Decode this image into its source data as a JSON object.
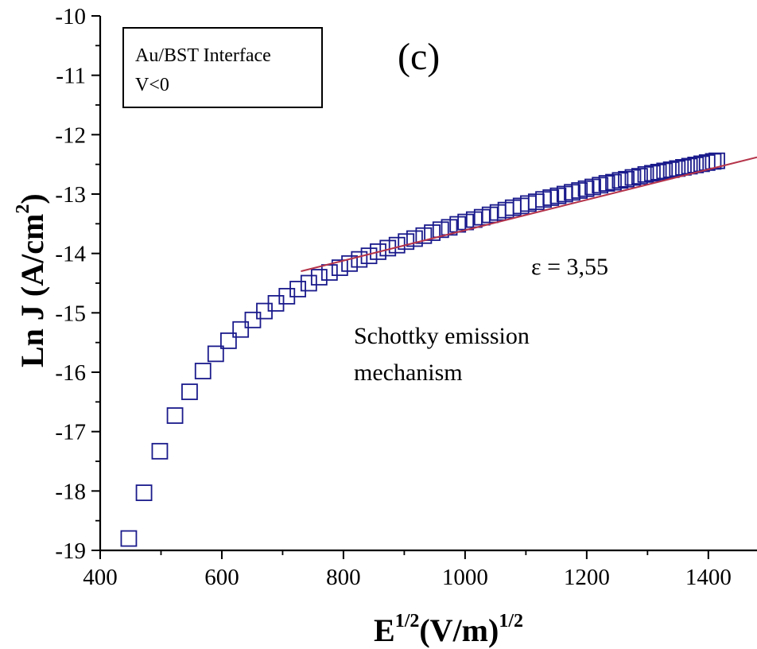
{
  "chart_data": {
    "type": "scatter",
    "title": "",
    "panel_label": "(c)",
    "xlabel": {
      "base": "E",
      "sup1": "1/2",
      "mid": "(V/m)",
      "sup2": "1/2"
    },
    "ylabel": {
      "base": "Ln J (A/cm",
      "sup": "2",
      "tail": ")"
    },
    "xlim": [
      400,
      1480
    ],
    "ylim": [
      -19,
      -10
    ],
    "x_ticks": [
      400,
      600,
      800,
      1000,
      1200,
      1400
    ],
    "y_ticks": [
      -10,
      -11,
      -12,
      -13,
      -14,
      -15,
      -16,
      -17,
      -18,
      -19
    ],
    "x_tick_labels": [
      "400",
      "600",
      "800",
      "1000",
      "1200",
      "1400"
    ],
    "y_tick_labels": [
      "-10",
      "-11",
      "-12",
      "-13",
      "-14",
      "-15",
      "-16",
      "-17",
      "-18",
      "-19"
    ],
    "legend": {
      "lines": [
        "Au/BST Interface",
        "V<0"
      ],
      "position": "top-left"
    },
    "annotations": {
      "epsilon": "ε = 3,55",
      "mechanism_line1": "Schottky emission",
      "mechanism_line2": "mechanism"
    },
    "colors": {
      "marker": "#1a1a8c",
      "fit": "#b5344a",
      "axis": "#000000"
    },
    "grid": false,
    "series": [
      {
        "marker": "open-square",
        "x": [
          447,
          472,
          498,
          523,
          547,
          569,
          590,
          611,
          631,
          651,
          670,
          689,
          707,
          725,
          743,
          760,
          777,
          794,
          810,
          826,
          842,
          857,
          873,
          888,
          903,
          917,
          932,
          946,
          960,
          974,
          988,
          1001,
          1015,
          1028,
          1041,
          1054,
          1067,
          1079,
          1092,
          1104,
          1117,
          1129,
          1141,
          1153,
          1164,
          1176,
          1188,
          1199,
          1210,
          1222,
          1233,
          1244,
          1255,
          1265,
          1276,
          1287,
          1297,
          1308,
          1318,
          1328,
          1339,
          1349,
          1359,
          1369,
          1379,
          1389,
          1398,
          1408,
          1414
        ],
        "y": [
          -18.8,
          -18.03,
          -17.33,
          -16.73,
          -16.33,
          -15.98,
          -15.69,
          -15.47,
          -15.28,
          -15.12,
          -14.97,
          -14.84,
          -14.72,
          -14.6,
          -14.5,
          -14.4,
          -14.32,
          -14.24,
          -14.17,
          -14.1,
          -14.04,
          -13.97,
          -13.91,
          -13.86,
          -13.8,
          -13.75,
          -13.7,
          -13.65,
          -13.6,
          -13.56,
          -13.51,
          -13.47,
          -13.43,
          -13.39,
          -13.35,
          -13.31,
          -13.27,
          -13.23,
          -13.2,
          -13.16,
          -13.13,
          -13.09,
          -13.06,
          -13.03,
          -13.0,
          -12.97,
          -12.94,
          -12.91,
          -12.88,
          -12.85,
          -12.82,
          -12.8,
          -12.77,
          -12.75,
          -12.72,
          -12.7,
          -12.67,
          -12.65,
          -12.63,
          -12.61,
          -12.59,
          -12.57,
          -12.55,
          -12.53,
          -12.51,
          -12.49,
          -12.47,
          -12.45,
          -12.44
        ]
      }
    ],
    "fit_line": {
      "type": "line",
      "x": [
        730,
        1480
      ],
      "y": [
        -14.3,
        -12.38
      ]
    }
  }
}
